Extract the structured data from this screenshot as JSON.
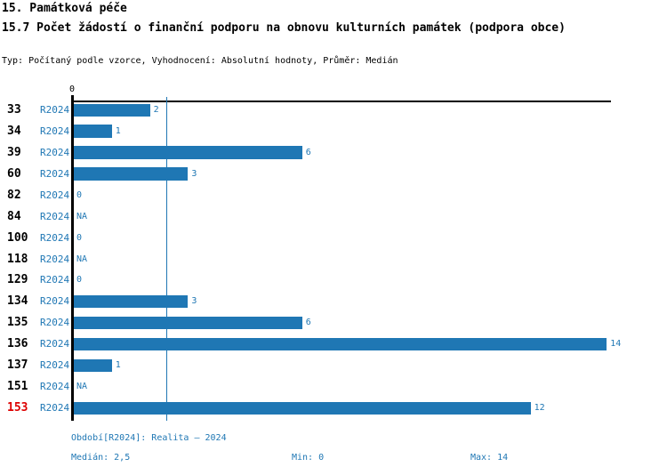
{
  "header": {
    "title": "15. Památková péče",
    "subtitle": "15.7 Počet žádostí o finanční podporu na obnovu kulturních památek (podpora obce)",
    "meta": "Typ: Počítaný podle vzorce, Vyhodnocení: Absolutní hodnoty, Průměr: Medián"
  },
  "chart_data": {
    "type": "bar",
    "orientation": "horizontal",
    "title": "15.7 Počet žádostí o finanční podporu na obnovu kulturních památek (podpora obce)",
    "categories": [
      "33",
      "34",
      "39",
      "60",
      "82",
      "84",
      "100",
      "118",
      "129",
      "134",
      "135",
      "136",
      "137",
      "151",
      "153"
    ],
    "period_label": "R2024",
    "values": [
      2,
      1,
      6,
      3,
      0,
      null,
      0,
      null,
      0,
      3,
      6,
      14,
      1,
      null,
      12
    ],
    "value_labels": [
      "2",
      "1",
      "6",
      "3",
      "0",
      "NA",
      "0",
      "NA",
      "0",
      "3",
      "6",
      "14",
      "1",
      "NA",
      "12"
    ],
    "highlighted_category": "153",
    "axis_tick_label": "0",
    "median_line_value": 2.5,
    "xlim": [
      0,
      14.2
    ],
    "grid": false,
    "legend": "none",
    "stats": {
      "median": 2.5,
      "min": 0,
      "max": 14
    }
  },
  "footer": {
    "period_info": "Období[R2024]: Realita – 2024",
    "median": "Medián: 2,5",
    "min": "Min: 0",
    "max": "Max: 14"
  },
  "colors": {
    "bar": "#1F77B4",
    "blue_text": "#1F77B4",
    "highlight": "#DD0000",
    "axis": "#000000",
    "background": "#FFFFFF"
  }
}
